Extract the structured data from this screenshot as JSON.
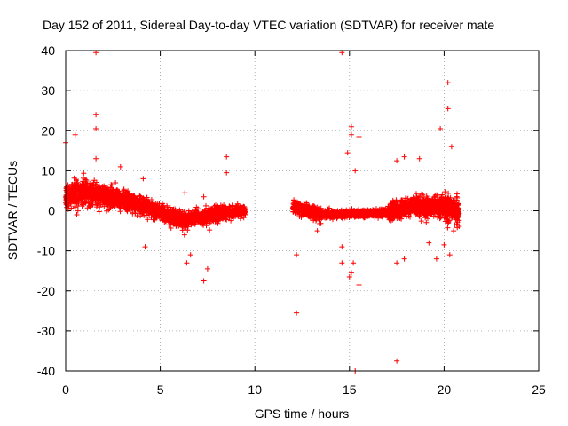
{
  "chart_data": {
    "type": "scatter",
    "title": "Day 152 of 2011, Sidereal Day-to-day VTEC variation (SDTVAR) for receiver mate",
    "xlabel": "GPS time / hours",
    "ylabel": "SDTVAR / TECUs",
    "xlim": [
      0,
      25
    ],
    "ylim": [
      -40,
      40
    ],
    "xticks": [
      "0",
      "5",
      "10",
      "15",
      "20",
      "25"
    ],
    "yticks": [
      "40",
      "30",
      "20",
      "10",
      "0",
      "-10",
      "-20",
      "-30",
      "-40"
    ],
    "grid": true,
    "marker": "+",
    "series": [
      {
        "name": "SDTVAR",
        "color": "#ff0000",
        "segments": [
          {
            "x_start": 0.0,
            "x_end": 1.0,
            "center_start": 3.5,
            "center_end": 4.5,
            "spread": 3.0
          },
          {
            "x_start": 1.0,
            "x_end": 2.5,
            "center_start": 4.5,
            "center_end": 3.5,
            "spread": 2.8
          },
          {
            "x_start": 2.5,
            "x_end": 4.5,
            "center_start": 3.5,
            "center_end": 0.5,
            "spread": 2.2
          },
          {
            "x_start": 4.5,
            "x_end": 6.5,
            "center_start": 0.5,
            "center_end": -3.0,
            "spread": 2.0
          },
          {
            "x_start": 6.5,
            "x_end": 8.5,
            "center_start": -2.0,
            "center_end": -0.5,
            "spread": 1.8
          },
          {
            "x_start": 8.5,
            "x_end": 9.5,
            "center_start": -0.5,
            "center_end": 0.0,
            "spread": 1.2
          },
          {
            "x_start": 12.0,
            "x_end": 13.5,
            "center_start": 1.0,
            "center_end": -1.0,
            "spread": 1.5
          },
          {
            "x_start": 13.5,
            "x_end": 17.0,
            "center_start": -1.0,
            "center_end": -0.5,
            "spread": 0.8
          },
          {
            "x_start": 17.0,
            "x_end": 18.5,
            "center_start": -0.5,
            "center_end": 1.5,
            "spread": 2.0
          },
          {
            "x_start": 18.5,
            "x_end": 20.0,
            "center_start": 1.0,
            "center_end": 1.0,
            "spread": 2.5
          },
          {
            "x_start": 20.0,
            "x_end": 20.8,
            "center_start": 1.0,
            "center_end": 0.0,
            "spread": 3.5
          }
        ],
        "outliers": [
          {
            "x": 1.6,
            "y": 39.5
          },
          {
            "x": 1.6,
            "y": 24.0
          },
          {
            "x": 1.6,
            "y": 20.5
          },
          {
            "x": 0.5,
            "y": 19.0
          },
          {
            "x": 0.0,
            "y": 17.0
          },
          {
            "x": 1.6,
            "y": 13.0
          },
          {
            "x": 2.9,
            "y": 11.0
          },
          {
            "x": 4.2,
            "y": -9.0
          },
          {
            "x": 4.1,
            "y": 8.0
          },
          {
            "x": 6.3,
            "y": 4.5
          },
          {
            "x": 6.4,
            "y": -13.0
          },
          {
            "x": 6.6,
            "y": -11.0
          },
          {
            "x": 7.3,
            "y": -17.5
          },
          {
            "x": 7.5,
            "y": -14.5
          },
          {
            "x": 7.3,
            "y": 3.5
          },
          {
            "x": 8.5,
            "y": 13.5
          },
          {
            "x": 8.5,
            "y": 9.5
          },
          {
            "x": 12.2,
            "y": -25.5
          },
          {
            "x": 12.2,
            "y": -11.0
          },
          {
            "x": 13.3,
            "y": -5.0
          },
          {
            "x": 14.6,
            "y": 39.5
          },
          {
            "x": 14.9,
            "y": 14.5
          },
          {
            "x": 15.1,
            "y": 21.0
          },
          {
            "x": 15.1,
            "y": 19.0
          },
          {
            "x": 15.5,
            "y": 18.5
          },
          {
            "x": 15.3,
            "y": 10.0
          },
          {
            "x": 14.6,
            "y": -9.0
          },
          {
            "x": 14.6,
            "y": -13.0
          },
          {
            "x": 15.0,
            "y": -16.5
          },
          {
            "x": 15.1,
            "y": -15.5
          },
          {
            "x": 15.2,
            "y": -13.0
          },
          {
            "x": 15.5,
            "y": -18.5
          },
          {
            "x": 15.3,
            "y": -40.0
          },
          {
            "x": 17.5,
            "y": -37.5
          },
          {
            "x": 17.5,
            "y": 12.5
          },
          {
            "x": 17.9,
            "y": 13.5
          },
          {
            "x": 17.5,
            "y": -13.0
          },
          {
            "x": 17.9,
            "y": -12.0
          },
          {
            "x": 18.7,
            "y": 13.0
          },
          {
            "x": 19.2,
            "y": -8.0
          },
          {
            "x": 19.6,
            "y": -12.0
          },
          {
            "x": 19.8,
            "y": 20.5
          },
          {
            "x": 20.2,
            "y": 32.0
          },
          {
            "x": 20.2,
            "y": 25.5
          },
          {
            "x": 20.4,
            "y": 16.0
          },
          {
            "x": 20.0,
            "y": -8.5
          },
          {
            "x": 20.3,
            "y": -11.0
          },
          {
            "x": 20.5,
            "y": -5.0
          }
        ]
      }
    ]
  }
}
